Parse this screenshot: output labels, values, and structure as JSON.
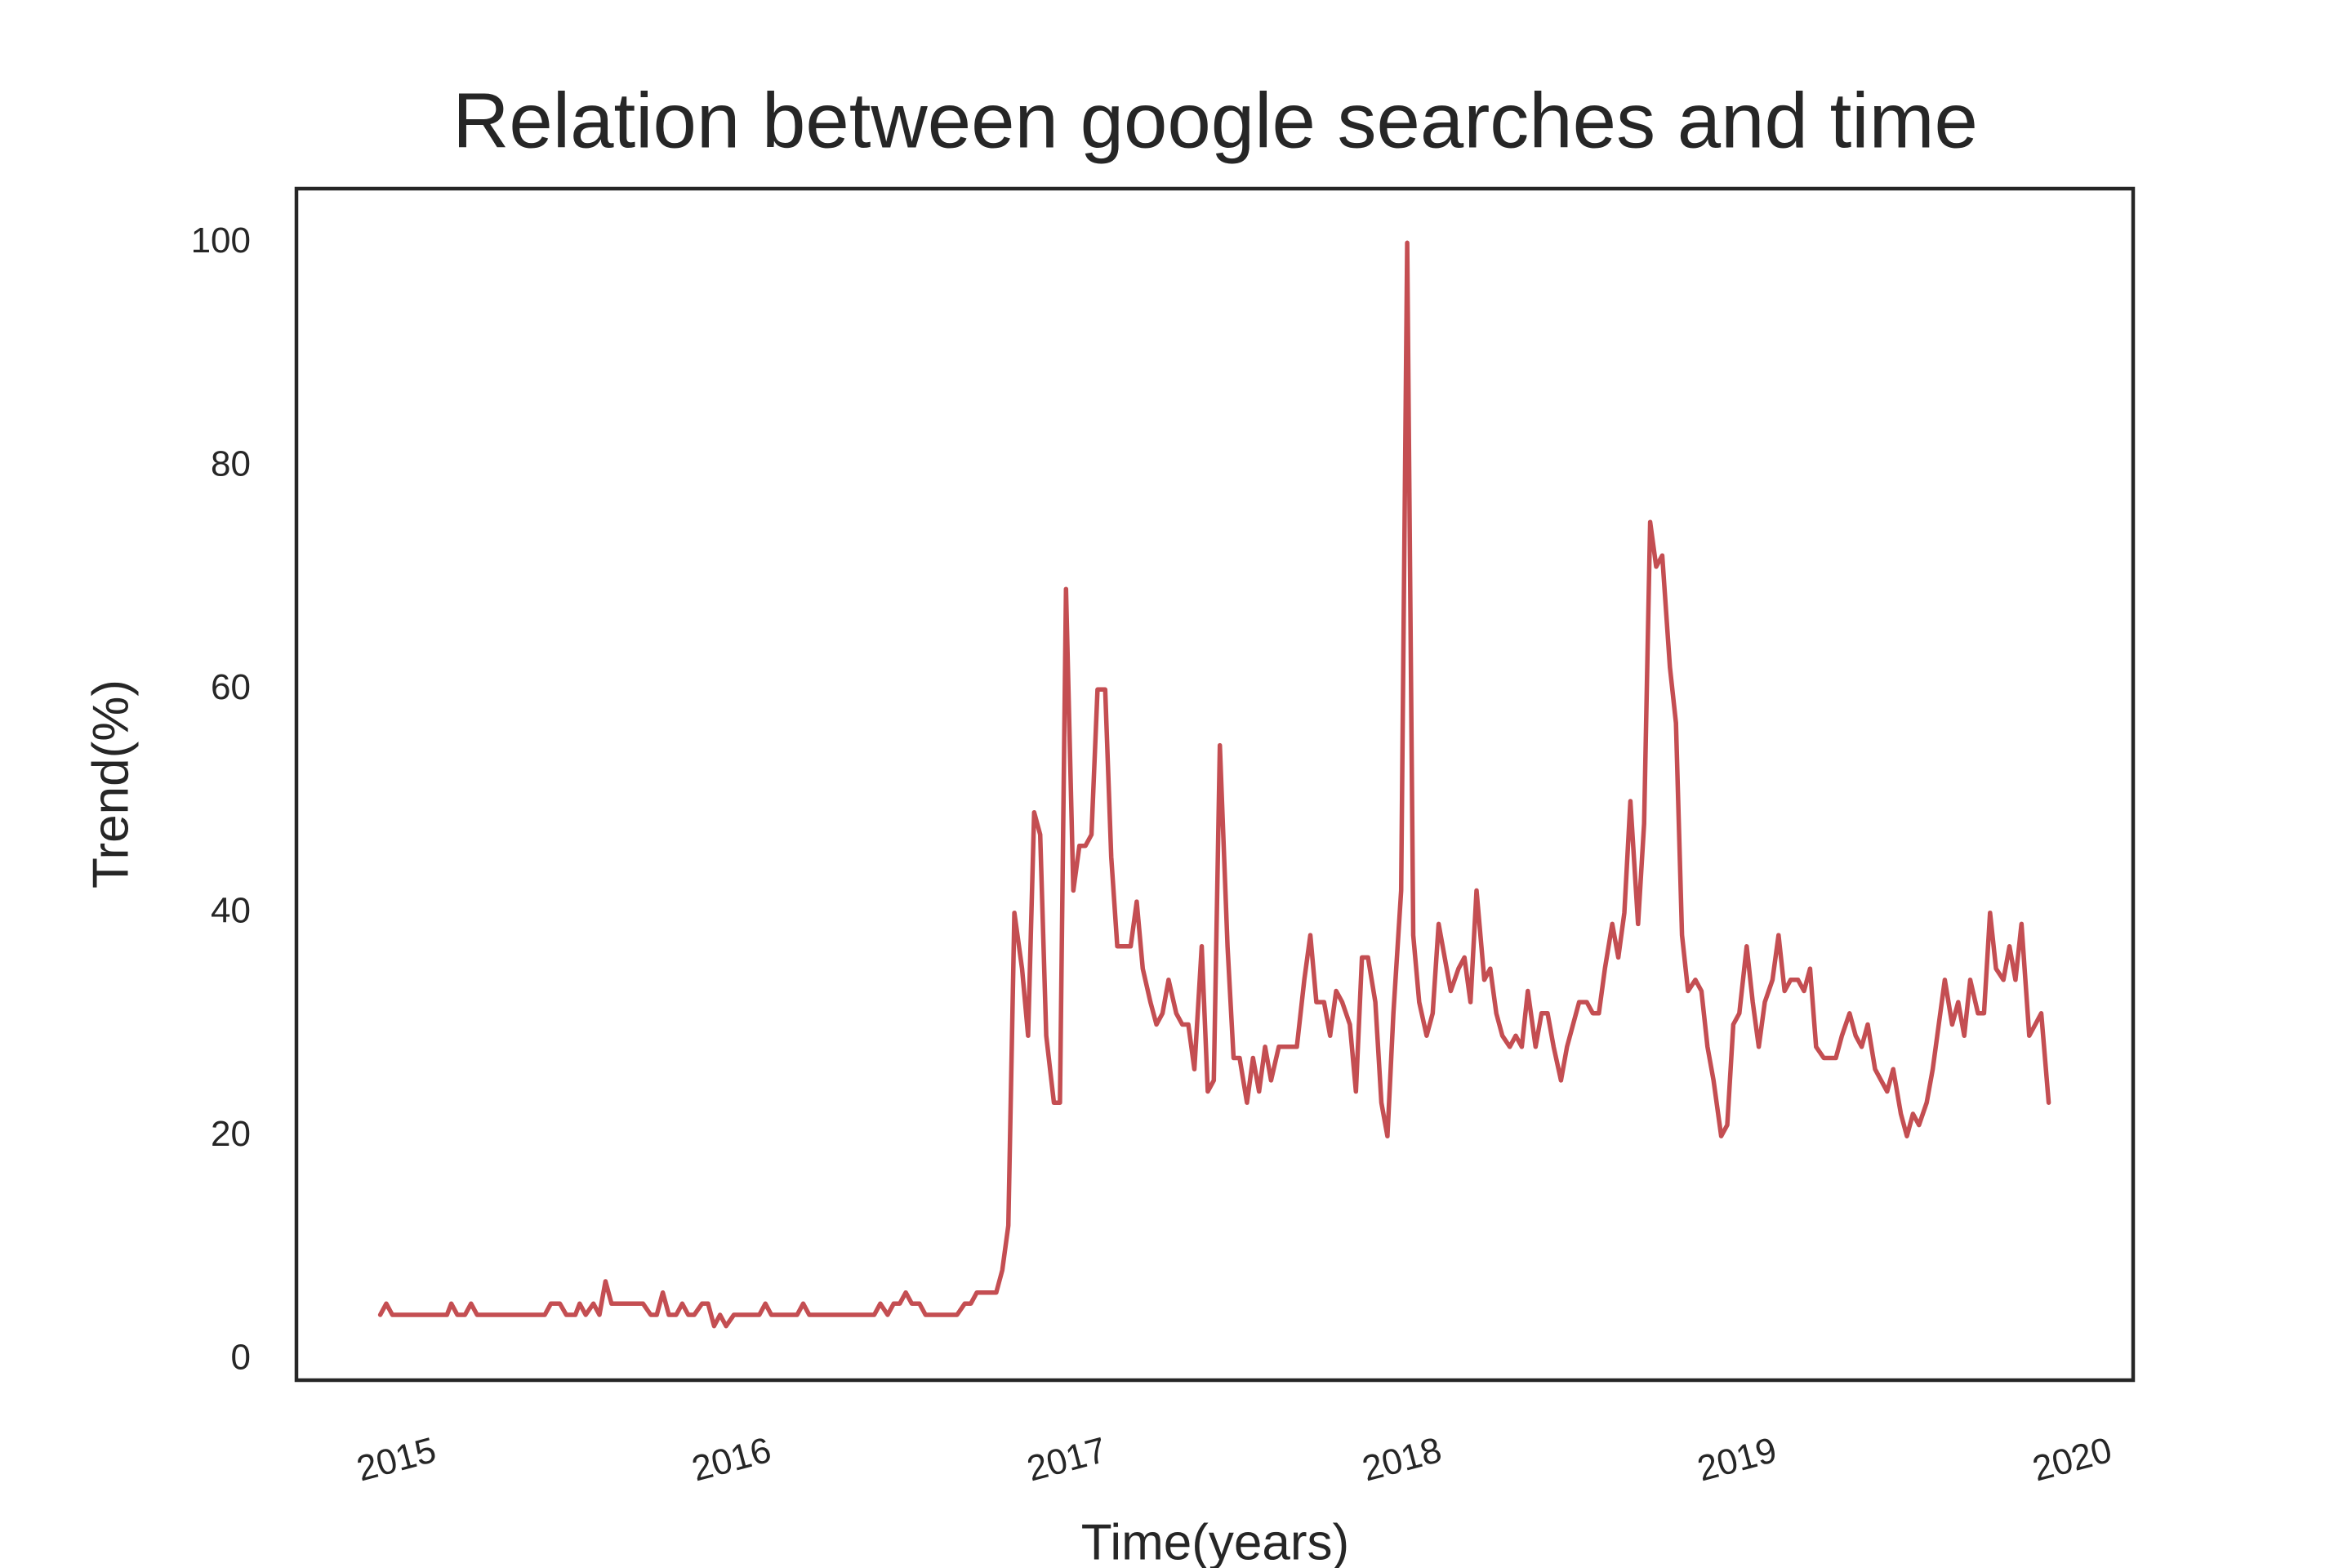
{
  "chart_data": {
    "type": "line",
    "title": "Relation between google searches and time",
    "xlabel": "Time(years)",
    "ylabel": "Trend(%)",
    "color": "#c44e52",
    "grid": false,
    "xlim": [
      2014.7,
      2020.18
    ],
    "xticks": [
      2015,
      2016,
      2017,
      2018,
      2019,
      2020
    ],
    "ylim": [
      -1.85,
      104.85
    ],
    "yticks": [
      0,
      20,
      40,
      60,
      80,
      100
    ],
    "x": [
      2014.95,
      2014.968,
      2014.986,
      2015.149,
      2015.162,
      2015.18,
      2015.203,
      2015.221,
      2015.239,
      2015.441,
      2015.459,
      2015.486,
      2015.505,
      2015.532,
      2015.545,
      2015.563,
      2015.586,
      2015.604,
      2015.622,
      2015.64,
      2015.734,
      2015.757,
      2015.775,
      2015.793,
      2015.811,
      2015.833,
      2015.851,
      2015.869,
      2015.887,
      2015.91,
      2015.928,
      2015.946,
      2015.964,
      2015.982,
      2016.005,
      2016.081,
      2016.099,
      2016.117,
      2016.194,
      2016.212,
      2016.23,
      2016.424,
      2016.442,
      2016.464,
      2016.482,
      2016.5,
      2016.518,
      2016.536,
      2016.559,
      2016.577,
      2016.671,
      2016.694,
      2016.712,
      2016.73,
      2016.788,
      2016.806,
      2016.824,
      2016.842,
      2016.865,
      2016.883,
      2016.901,
      2016.919,
      2016.937,
      2016.96,
      2016.978,
      2016.996,
      2017.018,
      2017.036,
      2017.054,
      2017.072,
      2017.09,
      2017.113,
      2017.131,
      2017.149,
      2017.189,
      2017.207,
      2017.225,
      2017.248,
      2017.266,
      2017.284,
      2017.302,
      2017.325,
      2017.343,
      2017.361,
      2017.379,
      2017.401,
      2017.419,
      2017.437,
      2017.455,
      2017.478,
      2017.496,
      2017.514,
      2017.536,
      2017.554,
      2017.572,
      2017.59,
      2017.608,
      2017.631,
      2017.685,
      2017.707,
      2017.725,
      2017.743,
      2017.766,
      2017.784,
      2017.802,
      2017.82,
      2017.843,
      2017.861,
      2017.879,
      2017.897,
      2017.919,
      2017.937,
      2017.955,
      2017.973,
      2017.996,
      2018.014,
      2018.032,
      2018.05,
      2018.072,
      2018.09,
      2018.108,
      2018.126,
      2018.144,
      2018.167,
      2018.185,
      2018.203,
      2018.221,
      2018.244,
      2018.262,
      2018.28,
      2018.298,
      2018.32,
      2018.338,
      2018.356,
      2018.374,
      2018.397,
      2018.415,
      2018.433,
      2018.451,
      2018.473,
      2018.491,
      2018.509,
      2018.527,
      2018.55,
      2018.568,
      2018.586,
      2018.604,
      2018.626,
      2018.644,
      2018.662,
      2018.68,
      2018.703,
      2018.721,
      2018.739,
      2018.757,
      2018.775,
      2018.798,
      2018.816,
      2018.834,
      2018.852,
      2018.874,
      2018.892,
      2018.91,
      2018.928,
      2018.951,
      2018.969,
      2018.987,
      2019.005,
      2019.027,
      2019.045,
      2019.063,
      2019.081,
      2019.104,
      2019.122,
      2019.14,
      2019.158,
      2019.18,
      2019.198,
      2019.216,
      2019.234,
      2019.257,
      2019.293,
      2019.311,
      2019.334,
      2019.352,
      2019.37,
      2019.388,
      2019.41,
      2019.428,
      2019.446,
      2019.464,
      2019.487,
      2019.505,
      2019.523,
      2019.541,
      2019.564,
      2019.582,
      2019.6,
      2019.618,
      2019.64,
      2019.658,
      2019.676,
      2019.694,
      2019.717,
      2019.735,
      2019.753,
      2019.771,
      2019.793,
      2019.811,
      2019.829,
      2019.847,
      2019.87,
      2019.888,
      2019.906,
      2019.928
    ],
    "values": [
      4,
      5,
      4,
      4,
      5,
      4,
      4,
      5,
      4,
      4,
      5,
      5,
      4,
      4,
      5,
      4,
      5,
      4,
      7,
      5,
      5,
      4,
      4,
      6,
      4,
      4,
      5,
      4,
      4,
      5,
      5,
      3,
      4,
      3,
      4,
      4,
      5,
      4,
      4,
      5,
      4,
      4,
      5,
      4,
      5,
      5,
      6,
      5,
      5,
      4,
      4,
      5,
      5,
      6,
      6,
      8,
      12,
      40,
      35,
      29,
      49,
      47,
      29,
      23,
      23,
      69,
      42,
      46,
      46,
      47,
      60,
      60,
      45,
      37,
      37,
      41,
      35,
      32,
      30,
      31,
      34,
      31,
      30,
      30,
      26,
      37,
      24,
      25,
      55,
      37,
      27,
      27,
      23,
      27,
      24,
      28,
      25,
      28,
      28,
      34,
      38,
      32,
      32,
      29,
      33,
      32,
      30,
      24,
      36,
      36,
      32,
      23,
      20,
      31,
      42,
      100,
      38,
      32,
      29,
      31,
      39,
      36,
      33,
      35,
      36,
      32,
      42,
      34,
      35,
      31,
      29,
      28,
      29,
      28,
      33,
      28,
      31,
      31,
      28,
      25,
      28,
      30,
      32,
      32,
      31,
      31,
      35,
      39,
      36,
      40,
      50,
      39,
      48,
      75,
      71,
      72,
      62,
      57,
      38,
      33,
      34,
      33,
      28,
      25,
      20,
      21,
      30,
      31,
      37,
      32,
      28,
      32,
      34,
      38,
      33,
      34,
      34,
      33,
      35,
      28,
      27,
      27,
      29,
      31,
      29,
      28,
      30,
      26,
      25,
      24,
      26,
      22,
      20,
      22,
      21,
      23,
      26,
      30,
      34,
      30,
      32,
      29,
      34,
      31,
      31,
      40,
      35,
      34,
      37,
      34,
      39,
      29,
      30,
      31,
      23
    ]
  }
}
